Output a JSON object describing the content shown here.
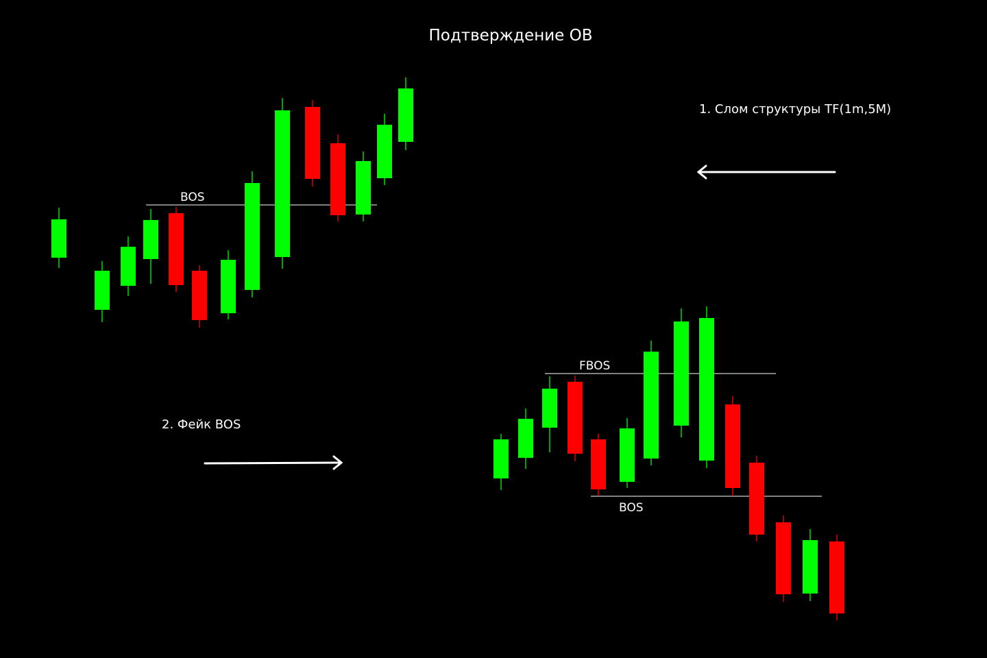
{
  "title": "Подтверждение OB",
  "notes": {
    "structure_break": "1. Слом структуры TF(1m,5M)",
    "fake_bos": "2. Фейк BOS"
  },
  "levels": {
    "upper_bos": "BOS",
    "fbos": "FBOS",
    "lower_bos": "BOS"
  },
  "colors": {
    "background": "#000000",
    "bullish": "#00ff00",
    "bearish": "#ff0000",
    "line": "#ffffff"
  },
  "arrows": {
    "top_right": "left-arrow",
    "middle_left": "right-arrow"
  }
}
